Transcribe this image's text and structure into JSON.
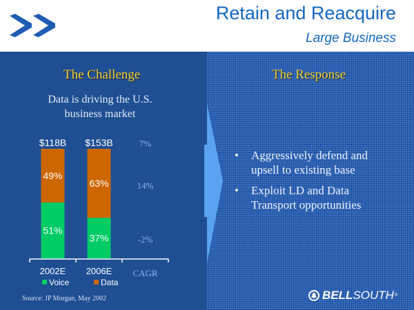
{
  "header": {
    "title": "Retain and Reacquire",
    "subtitle": "Large Business",
    "logo_icon": "double-chevron-right-icon"
  },
  "left": {
    "heading": "The Challenge",
    "subheading_line1": "Data is driving the U.S.",
    "subheading_line2": "business market",
    "source": "Source: JP Morgan, May 2002"
  },
  "right": {
    "heading": "The Response",
    "bullets": [
      {
        "line1": "Aggressively defend and",
        "line2": "upsell to existing base"
      },
      {
        "line1": "Exploit LD and Data",
        "line2": "Transport opportunities"
      }
    ],
    "bullet_glyph": "•"
  },
  "brand": {
    "icon": "bell-icon",
    "bell_glyph": "🔔",
    "name_bold": "BELL",
    "name_regular": "SOUTH",
    "registered": "®"
  },
  "colors": {
    "voice": "#00CC66",
    "data": "#CC6600",
    "cagr_text": "#8FB4EE",
    "title": "#1466C3",
    "heading": "#F2D33A"
  },
  "chart_data": {
    "type": "bar",
    "stacked": true,
    "percent_stacked": true,
    "categories": [
      "2002E",
      "2006E"
    ],
    "totals": [
      "$118B",
      "$153B"
    ],
    "series": [
      {
        "name": "Voice",
        "values": [
          51,
          37
        ],
        "labels": [
          "51%",
          "37%"
        ]
      },
      {
        "name": "Data",
        "values": [
          49,
          63
        ],
        "labels": [
          "49%",
          "63%"
        ]
      }
    ],
    "cagr": {
      "label": "CAGR",
      "total": "7%",
      "data": "14%",
      "voice": "-2%"
    },
    "legend": [
      "Voice",
      "Data"
    ],
    "legend_position": "bottom",
    "ylim": [
      0,
      100
    ],
    "grid": false,
    "title": "",
    "xlabel": "",
    "ylabel": ""
  }
}
